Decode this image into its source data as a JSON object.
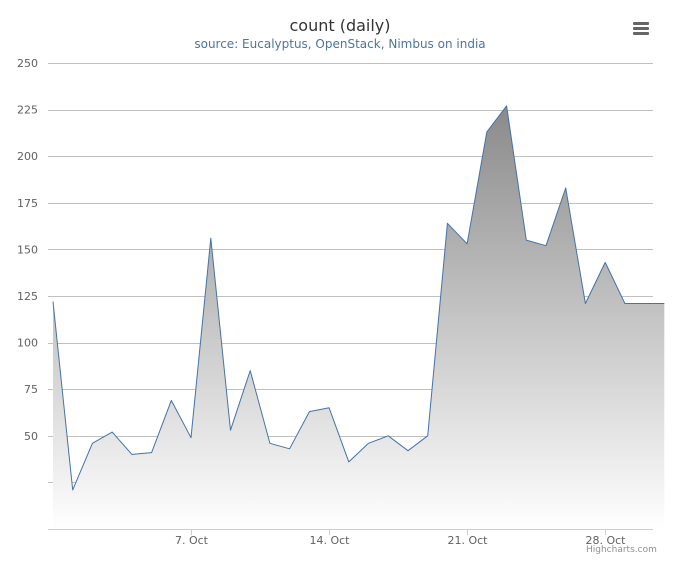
{
  "header": {
    "title": "count (daily)",
    "subtitle": "source: Eucalyptus, OpenStack, Nimbus on india",
    "menu_icon": "hamburger-menu-icon"
  },
  "credits": "Highcharts.com",
  "colors": {
    "line": "#4572a7",
    "fill_top": "#8a8a8a",
    "fill_bottom": "#ffffff",
    "grid": "#c0c0c0",
    "axis_text": "#606060"
  },
  "chart_data": {
    "type": "area",
    "title": "count (daily)",
    "subtitle": "source: Eucalyptus, OpenStack, Nimbus on india",
    "x_start": "2013-09-30",
    "x_ticks": [
      "7. Oct",
      "14. Oct",
      "21. Oct",
      "28. Oct"
    ],
    "x_tick_dates": [
      "2013-10-07",
      "2013-10-14",
      "2013-10-21",
      "2013-10-28"
    ],
    "y_ticks": [
      50,
      75,
      100,
      125,
      150,
      175,
      200,
      225,
      250
    ],
    "ylim": [
      0,
      250
    ],
    "grid": true,
    "legend": false,
    "series": [
      {
        "dates": [
          "2013-09-30",
          "2013-10-01",
          "2013-10-02",
          "2013-10-03",
          "2013-10-04",
          "2013-10-05",
          "2013-10-06",
          "2013-10-07",
          "2013-10-08",
          "2013-10-09",
          "2013-10-10",
          "2013-10-11",
          "2013-10-12",
          "2013-10-13",
          "2013-10-14",
          "2013-10-15",
          "2013-10-16",
          "2013-10-17",
          "2013-10-18",
          "2013-10-19",
          "2013-10-20",
          "2013-10-21",
          "2013-10-22",
          "2013-10-23",
          "2013-10-24",
          "2013-10-25",
          "2013-10-26",
          "2013-10-27",
          "2013-10-28",
          "2013-10-29",
          "2013-10-30",
          "2013-10-31"
        ],
        "values": [
          122,
          21,
          46,
          52,
          40,
          41,
          69,
          49,
          156,
          53,
          85,
          46,
          43,
          63,
          65,
          36,
          46,
          50,
          42,
          50,
          164,
          153,
          213,
          227,
          155,
          152,
          183,
          121,
          143,
          121,
          121,
          121
        ]
      }
    ]
  }
}
